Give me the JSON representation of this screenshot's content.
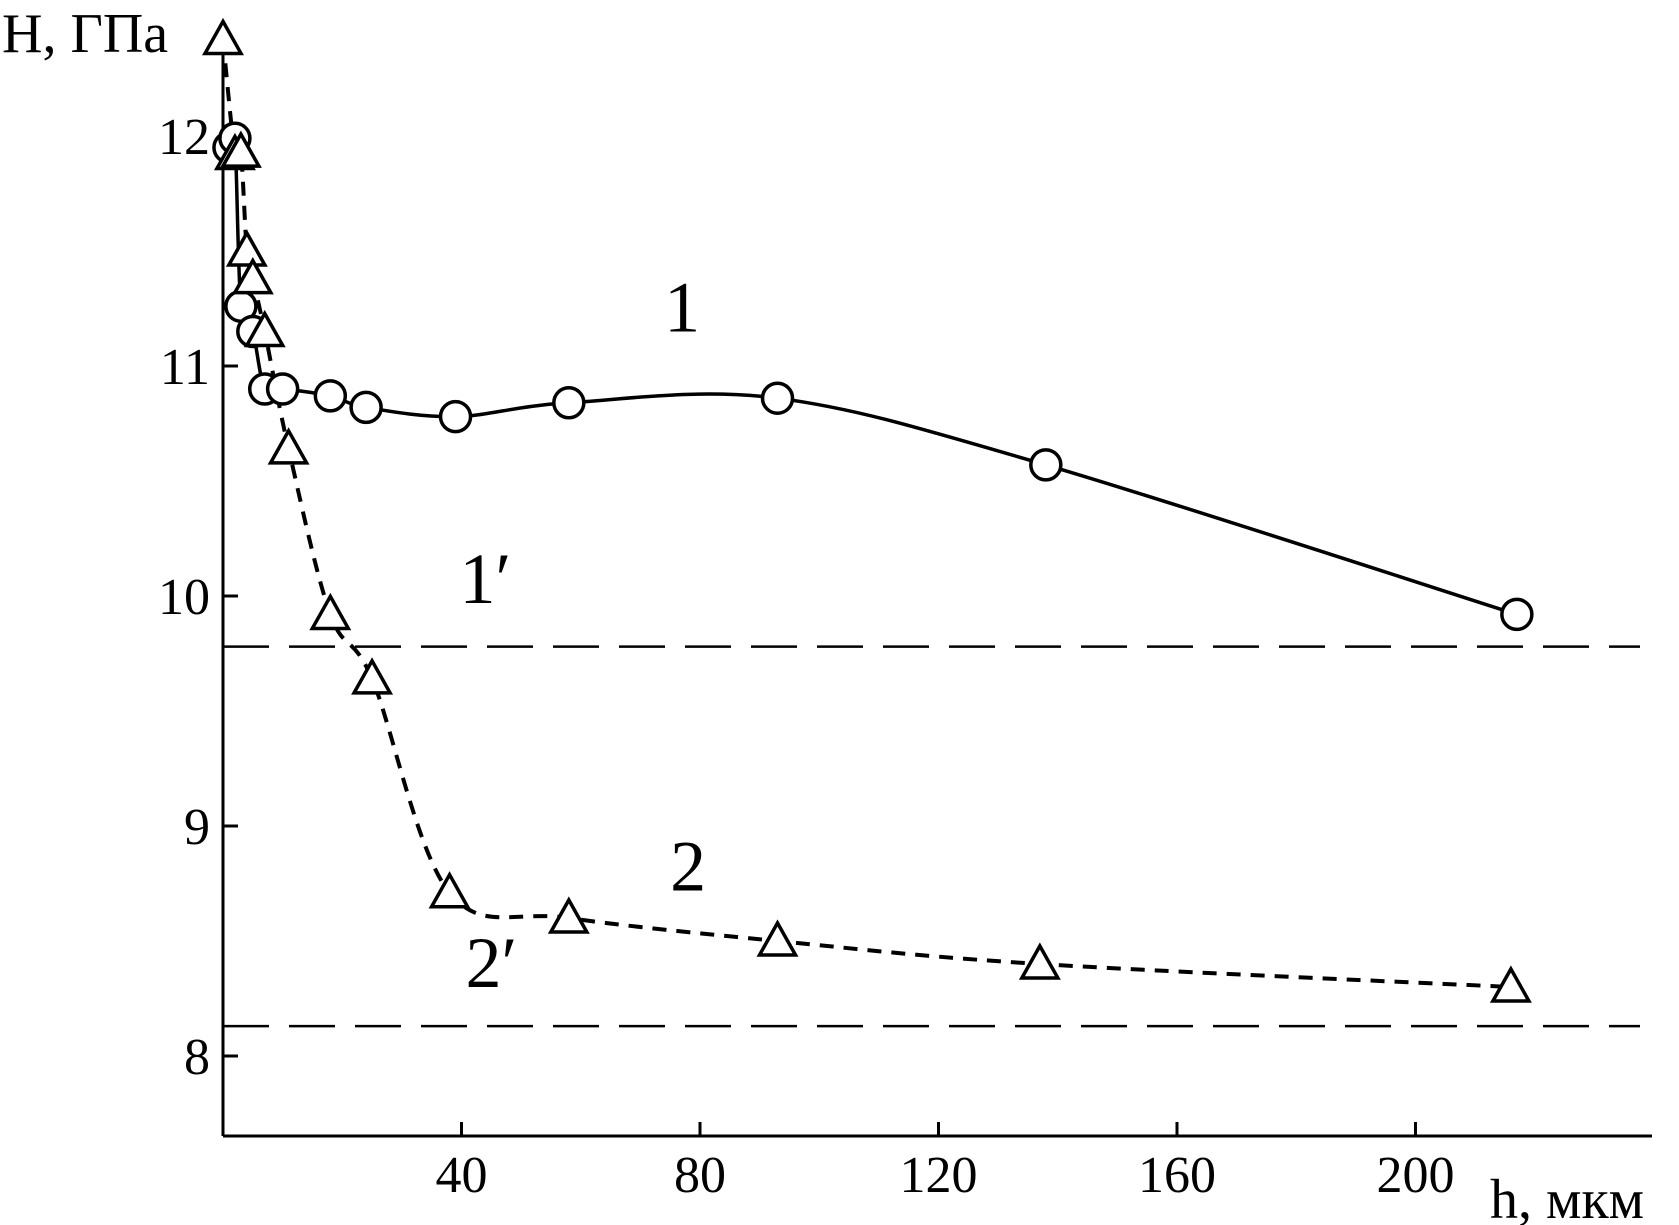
{
  "chart_data": {
    "type": "line",
    "title": "",
    "ylabel": "H, ГПа",
    "xlabel": "h, мкм",
    "xlim": [
      0,
      240
    ],
    "ylim": [
      7.5,
      12.3
    ],
    "x_ticks": [
      40,
      80,
      120,
      160,
      200
    ],
    "x_tick_labels": [
      "40",
      "80",
      "120",
      "160",
      "200"
    ],
    "y_ticks": [
      8,
      9,
      10,
      11,
      12
    ],
    "y_tick_labels": [
      "8",
      "9",
      "10",
      "11",
      "12"
    ],
    "grid": false,
    "series": [
      {
        "name": "1",
        "marker": "circle",
        "line": "solid",
        "x": [
          1,
          2,
          3,
          5,
          7,
          10,
          18,
          24,
          39,
          58,
          93,
          138,
          217
        ],
        "y": [
          11.95,
          11.99,
          11.26,
          11.15,
          10.9,
          10.9,
          10.87,
          10.82,
          10.78,
          10.84,
          10.86,
          10.57,
          9.92
        ]
      },
      {
        "name": "2",
        "marker": "triangle",
        "line": "dashed",
        "x": [
          0,
          2,
          3,
          4,
          5,
          7,
          11,
          18,
          25,
          38,
          58,
          93,
          137,
          216
        ],
        "y": [
          12.42,
          11.92,
          11.93,
          11.5,
          11.38,
          11.15,
          10.64,
          9.92,
          9.64,
          8.71,
          8.6,
          8.5,
          8.4,
          8.3
        ]
      }
    ],
    "reference_lines": [
      {
        "name": "1′",
        "y": 9.78
      },
      {
        "name": "2′",
        "y": 8.13
      }
    ],
    "annotations": [
      {
        "text": "1",
        "x": 77,
        "y": 11.15
      },
      {
        "text": "1′",
        "x": 44,
        "y": 9.97
      },
      {
        "text": "2",
        "x": 78,
        "y": 8.72
      },
      {
        "text": "2′",
        "x": 45,
        "y": 8.3
      }
    ]
  }
}
